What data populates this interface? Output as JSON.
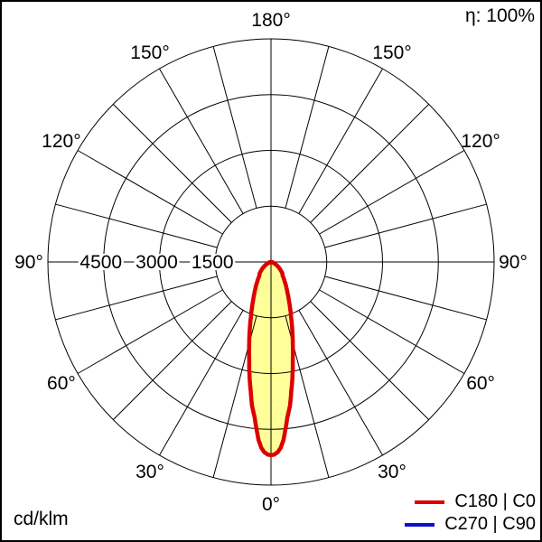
{
  "header": {
    "efficiency_label": "η: 100%"
  },
  "footer": {
    "unit_label": "cd/klm"
  },
  "legend": {
    "items": [
      {
        "label": "C180 | C0",
        "color": "#dd0000"
      },
      {
        "label": "C270 | C90",
        "color": "#1111cc"
      }
    ]
  },
  "chart_data": {
    "type": "polar-intensity-distribution",
    "unit": "cd/klm",
    "efficiency_percent": 100,
    "max_value": 6000,
    "ring_step": 1500,
    "ring_values": [
      1500,
      3000,
      4500,
      6000
    ],
    "labeled_rings": [
      4500,
      3000,
      1500
    ],
    "ring_label_texts": [
      "4500",
      "3000",
      "1500"
    ],
    "spoke_step_deg": 15,
    "angle_label_step_deg": 30,
    "angle_labels": [
      "0°",
      "30°",
      "60°",
      "90°",
      "120°",
      "150°",
      "180°"
    ],
    "beam_fill_color": "#ffff99",
    "series": [
      {
        "name": "C180 | C0",
        "color": "#dd0000",
        "gamma_deg": [
          0,
          1,
          2,
          3,
          4,
          5,
          6,
          7.5,
          9,
          10,
          12.5,
          15,
          17.5,
          20,
          22.5,
          25,
          27.5,
          30,
          35,
          40,
          45,
          50,
          55,
          60,
          65,
          70,
          75,
          80,
          85,
          90
        ],
        "values": [
          5200,
          5180,
          5120,
          5000,
          4800,
          4500,
          4200,
          3900,
          3500,
          3280,
          2700,
          2260,
          1900,
          1580,
          1340,
          1140,
          980,
          850,
          640,
          490,
          430,
          330,
          250,
          180,
          120,
          70,
          35,
          12,
          3,
          0
        ]
      },
      {
        "name": "C270 | C90",
        "color": "#1111cc",
        "gamma_deg": [
          0,
          1,
          2,
          3,
          4,
          5,
          6,
          7.5,
          9,
          10,
          12.5,
          15,
          17.5,
          20,
          22.5,
          25,
          27.5,
          30,
          35,
          40,
          45,
          50,
          55,
          60,
          65,
          70,
          75,
          80,
          85,
          90
        ],
        "values": [
          5200,
          5180,
          5120,
          5000,
          4800,
          4500,
          4200,
          3900,
          3500,
          3280,
          2700,
          2260,
          1900,
          1580,
          1340,
          1140,
          980,
          850,
          640,
          490,
          430,
          330,
          250,
          180,
          120,
          70,
          35,
          12,
          3,
          0
        ]
      }
    ]
  }
}
